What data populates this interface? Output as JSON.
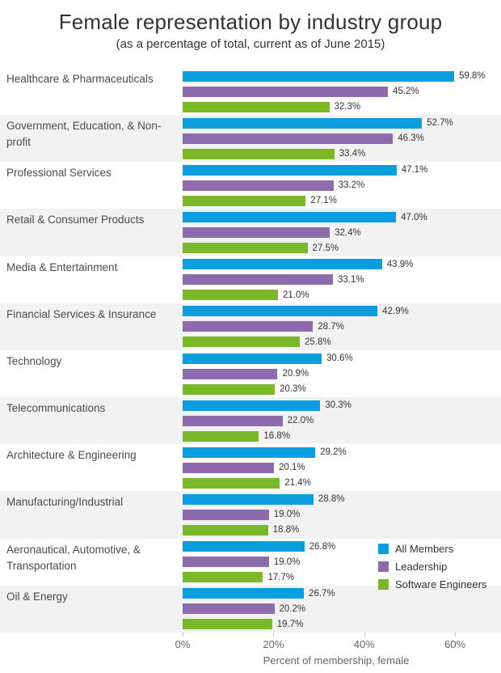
{
  "title": "Female representation by industry group",
  "subtitle": "(as a percentage of total, current as of June 2015)",
  "axis": {
    "label": "Percent of membership, female",
    "ticks": [
      "0%",
      "20%",
      "40%",
      "60%"
    ],
    "tick_values": [
      0,
      20,
      40,
      60
    ]
  },
  "colors": {
    "all_members": "#0a9ede",
    "leadership": "#8c6cad",
    "software_engineers": "#7ab82a",
    "row_band": "#f2f2f2"
  },
  "chart_data": {
    "type": "bar",
    "orientation": "horizontal",
    "title": "Female representation by industry group",
    "subtitle": "(as a percentage of total, current as of June 2015)",
    "xlabel": "Percent of membership, female",
    "xlim": [
      0,
      70
    ],
    "x_ticks": [
      0,
      20,
      40,
      60
    ],
    "grid": false,
    "value_labels": true,
    "legend_position": "right-lower",
    "row_banding": "alternate groups shaded #f2f2f2",
    "categories": [
      "Healthcare & Pharmaceuticals",
      "Government, Education, & Non-profit",
      "Professional Services",
      "Retail & Consumer Products",
      "Media & Entertainment",
      "Financial Services & Insurance",
      "Technology",
      "Telecommunications",
      "Architecture & Engineering",
      "Manufacturing/Industrial",
      "Aeronautical, Automotive, & Transportation",
      "Oil & Energy"
    ],
    "series": [
      {
        "name": "All Members",
        "key": "all-members",
        "color": "#0a9ede",
        "values": [
          59.8,
          52.7,
          47.1,
          47.0,
          43.9,
          42.9,
          30.6,
          30.3,
          29.2,
          28.8,
          26.8,
          26.7
        ]
      },
      {
        "name": "Leadership",
        "key": "leadership",
        "color": "#8c6cad",
        "values": [
          45.2,
          46.3,
          33.2,
          32.4,
          33.1,
          28.7,
          20.9,
          22.0,
          20.1,
          19.0,
          19.0,
          20.2
        ]
      },
      {
        "name": "Software Engineers",
        "key": "software-engineers",
        "color": "#7ab82a",
        "values": [
          32.3,
          33.4,
          27.1,
          27.5,
          21.0,
          25.8,
          20.3,
          16.8,
          21.4,
          18.8,
          17.7,
          19.7
        ]
      }
    ]
  }
}
